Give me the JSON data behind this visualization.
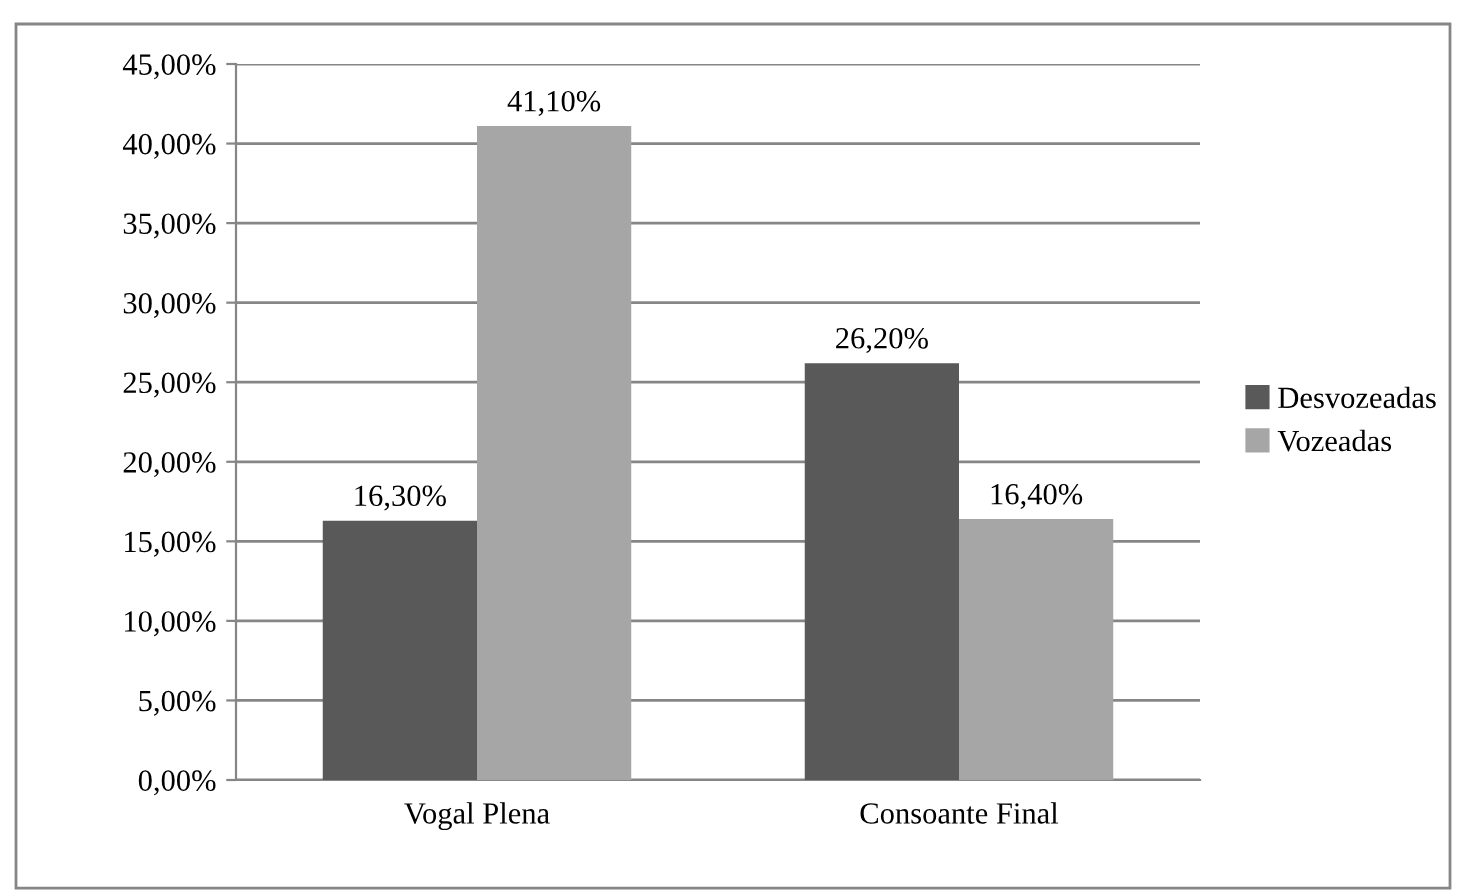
{
  "chart_data": {
    "type": "bar",
    "categories": [
      "Vogal Plena",
      "Consoante Final"
    ],
    "series": [
      {
        "name": "Desvozeadas",
        "color": "#595959",
        "values": [
          16.3,
          26.2
        ],
        "value_labels": [
          "16,30%",
          "26,20%"
        ]
      },
      {
        "name": "Vozeadas",
        "color": "#a6a6a6",
        "values": [
          41.1,
          16.4
        ],
        "value_labels": [
          "41,10%",
          "16,40%"
        ]
      }
    ],
    "ylim": [
      0,
      45
    ],
    "yticks": [
      {
        "value": 0,
        "label": "0,00%"
      },
      {
        "value": 5,
        "label": "5,00%"
      },
      {
        "value": 10,
        "label": "10,00%"
      },
      {
        "value": 15,
        "label": "15,00%"
      },
      {
        "value": 20,
        "label": "20,00%"
      },
      {
        "value": 25,
        "label": "25,00%"
      },
      {
        "value": 30,
        "label": "30,00%"
      },
      {
        "value": 35,
        "label": "35,00%"
      },
      {
        "value": 40,
        "label": "40,00%"
      },
      {
        "value": 45,
        "label": "45,00%"
      }
    ],
    "grid": "y",
    "legend": "right"
  }
}
